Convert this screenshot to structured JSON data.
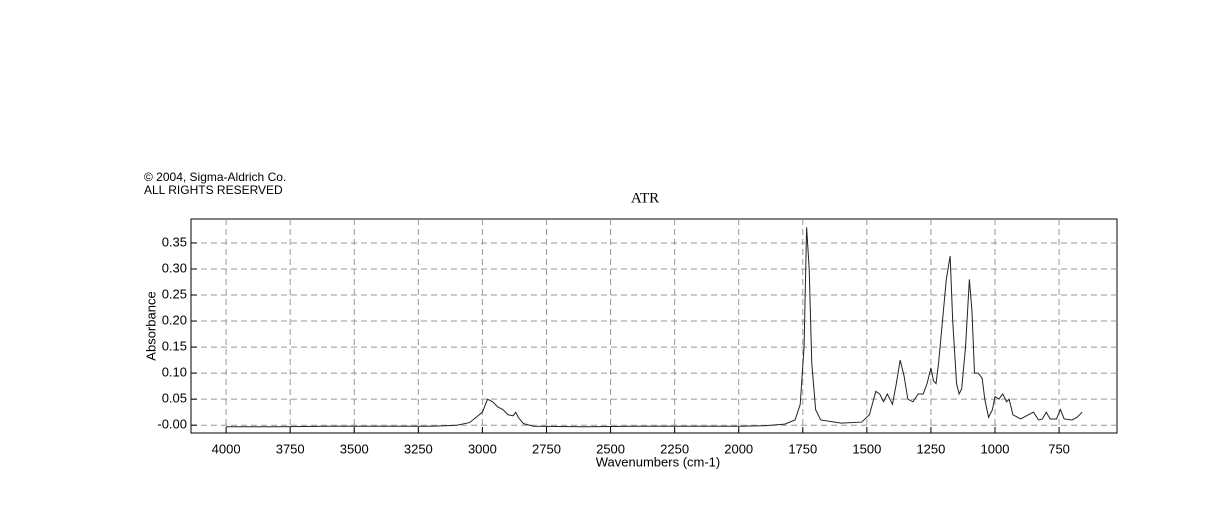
{
  "chart_data": {
    "type": "line",
    "title": "ATR",
    "annotations": [
      "© 2004, Sigma-Aldrich Co.",
      "ALL RIGHTS RESERVED"
    ],
    "x_label": "Wavenumbers (cm-1)",
    "y_label": "Absorbance",
    "xlim": [
      4137,
      524
    ],
    "ylim": [
      -0.015,
      0.396
    ],
    "xticks": [
      4000,
      3750,
      3500,
      3250,
      3000,
      2750,
      2500,
      2250,
      2000,
      1750,
      1500,
      1250,
      1000,
      750
    ],
    "yticks": [
      {
        "value": 0,
        "label": "-0.00"
      },
      0.05,
      {
        "value": 0.1,
        "label": "0.10"
      },
      0.15,
      {
        "value": 0.2,
        "label": "0.20"
      },
      0.25,
      {
        "value": 0.3,
        "label": "0.30"
      },
      0.35
    ],
    "grid": true,
    "color": "#222222",
    "x": [
      4000,
      3800,
      3600,
      3400,
      3200,
      3100,
      3050,
      3000,
      2980,
      2960,
      2940,
      2920,
      2900,
      2880,
      2870,
      2860,
      2840,
      2800,
      2600,
      2400,
      2200,
      2000,
      1900,
      1820,
      1780,
      1760,
      1745,
      1735,
      1725,
      1715,
      1700,
      1680,
      1600,
      1520,
      1490,
      1465,
      1450,
      1435,
      1420,
      1400,
      1385,
      1370,
      1355,
      1340,
      1320,
      1300,
      1280,
      1265,
      1250,
      1240,
      1230,
      1220,
      1205,
      1190,
      1175,
      1165,
      1150,
      1140,
      1130,
      1115,
      1100,
      1090,
      1080,
      1065,
      1050,
      1040,
      1025,
      1010,
      1000,
      985,
      970,
      955,
      945,
      930,
      900,
      870,
      850,
      830,
      815,
      800,
      785,
      760,
      745,
      730,
      700,
      680,
      660
    ],
    "values": [
      -0.003,
      -0.003,
      -0.002,
      -0.002,
      -0.002,
      0.0,
      0.005,
      0.025,
      0.05,
      0.045,
      0.035,
      0.03,
      0.02,
      0.018,
      0.025,
      0.015,
      0.003,
      -0.002,
      -0.003,
      -0.002,
      -0.002,
      -0.002,
      -0.001,
      0.002,
      0.01,
      0.04,
      0.15,
      0.38,
      0.3,
      0.12,
      0.03,
      0.01,
      0.004,
      0.006,
      0.02,
      0.065,
      0.06,
      0.045,
      0.06,
      0.04,
      0.08,
      0.125,
      0.095,
      0.05,
      0.045,
      0.06,
      0.06,
      0.08,
      0.11,
      0.085,
      0.08,
      0.12,
      0.2,
      0.28,
      0.325,
      0.2,
      0.08,
      0.06,
      0.07,
      0.15,
      0.28,
      0.22,
      0.1,
      0.1,
      0.09,
      0.05,
      0.015,
      0.03,
      0.055,
      0.05,
      0.06,
      0.045,
      0.05,
      0.02,
      0.012,
      0.02,
      0.025,
      0.01,
      0.012,
      0.025,
      0.012,
      0.012,
      0.03,
      0.012,
      0.01,
      0.015,
      0.025
    ]
  }
}
